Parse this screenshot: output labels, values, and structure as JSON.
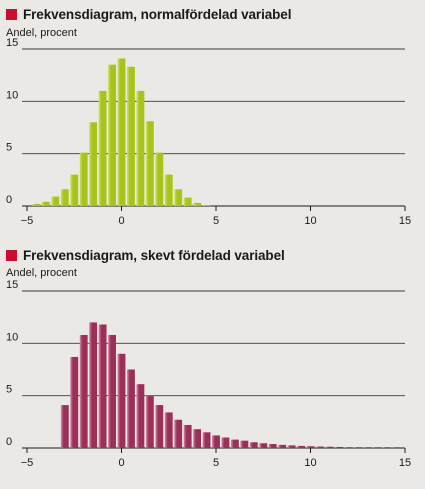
{
  "chart_data": [
    {
      "type": "bar",
      "title": "Frekvensdiagram, normalfördelad variabel",
      "ylabel": "Andel, procent",
      "xlabel": "",
      "xlim": [
        -5,
        15
      ],
      "ylim": [
        0,
        15
      ],
      "xticks": [
        -5,
        0,
        5,
        10,
        15
      ],
      "yticks": [
        0,
        5,
        10,
        15
      ],
      "bar_width": 0.5,
      "color": "#a8c41a",
      "color_light": "#cfe06a",
      "grid": true,
      "x": [
        -4.5,
        -4.0,
        -3.5,
        -3.0,
        -2.5,
        -2.0,
        -1.5,
        -1.0,
        -0.5,
        0.0,
        0.5,
        1.0,
        1.5,
        2.0,
        2.5,
        3.0,
        3.5,
        4.0,
        4.5
      ],
      "values": [
        0.2,
        0.4,
        0.9,
        1.6,
        3.0,
        5.1,
        8.0,
        11.0,
        13.5,
        14.1,
        13.3,
        11.0,
        8.1,
        5.1,
        3.0,
        1.6,
        0.8,
        0.3,
        0.1
      ]
    },
    {
      "type": "bar",
      "title": "Frekvensdiagram, skevt fördelad variabel",
      "ylabel": "Andel, procent",
      "xlabel": "",
      "xlim": [
        -5,
        15
      ],
      "ylim": [
        0,
        15
      ],
      "xticks": [
        -5,
        0,
        5,
        10,
        15
      ],
      "yticks": [
        0,
        5,
        10,
        15
      ],
      "bar_width": 0.5,
      "color": "#9a2f5a",
      "color_light": "#d48aa4",
      "grid": true,
      "x": [
        -3.0,
        -2.5,
        -2.0,
        -1.5,
        -1.0,
        -0.5,
        0.0,
        0.5,
        1.0,
        1.5,
        2.0,
        2.5,
        3.0,
        3.5,
        4.0,
        4.5,
        5.0,
        5.5,
        6.0,
        6.5,
        7.0,
        7.5,
        8.0,
        8.5,
        9.0,
        9.5,
        10.0,
        10.5,
        11.0,
        11.5,
        12.0,
        12.5,
        13.0,
        13.5,
        14.0,
        14.5
      ],
      "values": [
        4.1,
        8.7,
        10.8,
        12.0,
        11.8,
        10.8,
        9.0,
        7.5,
        6.1,
        5.0,
        4.1,
        3.4,
        2.7,
        2.2,
        1.8,
        1.5,
        1.2,
        1.0,
        0.8,
        0.7,
        0.55,
        0.45,
        0.38,
        0.3,
        0.25,
        0.2,
        0.17,
        0.14,
        0.12,
        0.1,
        0.08,
        0.07,
        0.06,
        0.05,
        0.04,
        0.03
      ]
    }
  ]
}
